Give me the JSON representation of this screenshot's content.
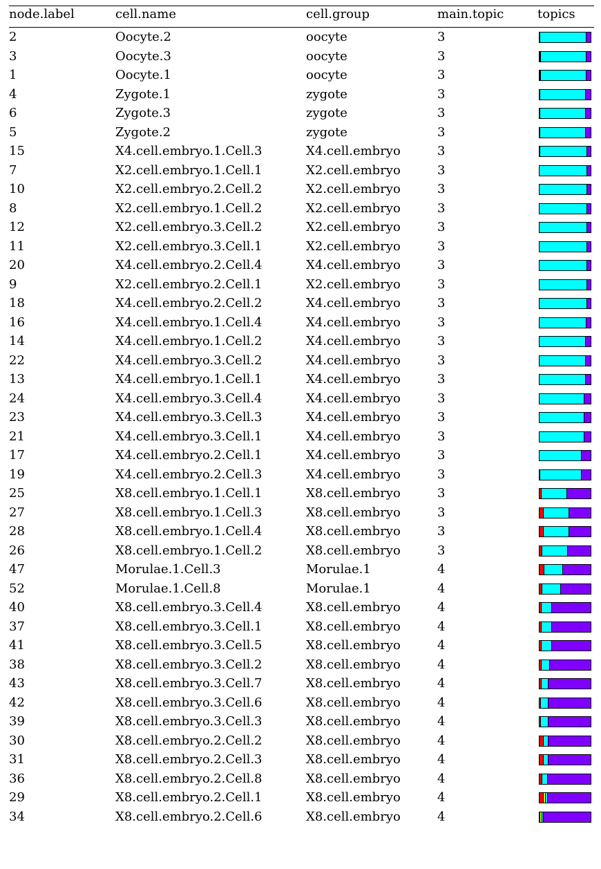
{
  "headers": [
    "node.label",
    "cell.name",
    "cell.group",
    "main.topic",
    "topics"
  ],
  "topic_colors": [
    "#ff0000",
    "#ccff00",
    "#00ffff",
    "#8000ff"
  ],
  "rows": [
    {
      "node_label": "2",
      "cell_name": "Oocyte.2",
      "cell_group": "oocyte",
      "main_topic": "3",
      "topics": [
        0.01,
        0.0,
        0.91,
        0.08
      ]
    },
    {
      "node_label": "3",
      "cell_name": "Oocyte.3",
      "cell_group": "oocyte",
      "main_topic": "3",
      "topics": [
        0.01,
        0.02,
        0.89,
        0.08
      ]
    },
    {
      "node_label": "1",
      "cell_name": "Oocyte.1",
      "cell_group": "oocyte",
      "main_topic": "3",
      "topics": [
        0.01,
        0.01,
        0.9,
        0.08
      ]
    },
    {
      "node_label": "4",
      "cell_name": "Zygote.1",
      "cell_group": "zygote",
      "main_topic": "3",
      "topics": [
        0.01,
        0.0,
        0.9,
        0.09
      ]
    },
    {
      "node_label": "6",
      "cell_name": "Zygote.3",
      "cell_group": "zygote",
      "main_topic": "3",
      "topics": [
        0.01,
        0.0,
        0.9,
        0.09
      ]
    },
    {
      "node_label": "5",
      "cell_name": "Zygote.2",
      "cell_group": "zygote",
      "main_topic": "3",
      "topics": [
        0.01,
        0.0,
        0.9,
        0.09
      ]
    },
    {
      "node_label": "15",
      "cell_name": "X4.cell.embryo.1.Cell.3",
      "cell_group": "X4.cell.embryo",
      "main_topic": "3",
      "topics": [
        0.01,
        0.0,
        0.92,
        0.07
      ]
    },
    {
      "node_label": "7",
      "cell_name": "X2.cell.embryo.1.Cell.1",
      "cell_group": "X2.cell.embryo",
      "main_topic": "3",
      "topics": [
        0.0,
        0.0,
        0.93,
        0.07
      ]
    },
    {
      "node_label": "10",
      "cell_name": "X2.cell.embryo.2.Cell.2",
      "cell_group": "X2.cell.embryo",
      "main_topic": "3",
      "topics": [
        0.0,
        0.0,
        0.93,
        0.07
      ]
    },
    {
      "node_label": "8",
      "cell_name": "X2.cell.embryo.1.Cell.2",
      "cell_group": "X2.cell.embryo",
      "main_topic": "3",
      "topics": [
        0.0,
        0.0,
        0.93,
        0.07
      ]
    },
    {
      "node_label": "12",
      "cell_name": "X2.cell.embryo.3.Cell.2",
      "cell_group": "X2.cell.embryo",
      "main_topic": "3",
      "topics": [
        0.0,
        0.0,
        0.93,
        0.07
      ]
    },
    {
      "node_label": "11",
      "cell_name": "X2.cell.embryo.3.Cell.1",
      "cell_group": "X2.cell.embryo",
      "main_topic": "3",
      "topics": [
        0.0,
        0.0,
        0.93,
        0.07
      ]
    },
    {
      "node_label": "20",
      "cell_name": "X4.cell.embryo.2.Cell.4",
      "cell_group": "X4.cell.embryo",
      "main_topic": "3",
      "topics": [
        0.0,
        0.0,
        0.93,
        0.07
      ]
    },
    {
      "node_label": "9",
      "cell_name": "X2.cell.embryo.2.Cell.1",
      "cell_group": "X2.cell.embryo",
      "main_topic": "3",
      "topics": [
        0.0,
        0.0,
        0.93,
        0.07
      ]
    },
    {
      "node_label": "18",
      "cell_name": "X4.cell.embryo.2.Cell.2",
      "cell_group": "X4.cell.embryo",
      "main_topic": "3",
      "topics": [
        0.0,
        0.0,
        0.93,
        0.07
      ]
    },
    {
      "node_label": "16",
      "cell_name": "X4.cell.embryo.1.Cell.4",
      "cell_group": "X4.cell.embryo",
      "main_topic": "3",
      "topics": [
        0.0,
        0.0,
        0.92,
        0.08
      ]
    },
    {
      "node_label": "14",
      "cell_name": "X4.cell.embryo.1.Cell.2",
      "cell_group": "X4.cell.embryo",
      "main_topic": "3",
      "topics": [
        0.0,
        0.0,
        0.9,
        0.1
      ]
    },
    {
      "node_label": "22",
      "cell_name": "X4.cell.embryo.3.Cell.2",
      "cell_group": "X4.cell.embryo",
      "main_topic": "3",
      "topics": [
        0.0,
        0.0,
        0.9,
        0.1
      ]
    },
    {
      "node_label": "13",
      "cell_name": "X4.cell.embryo.1.Cell.1",
      "cell_group": "X4.cell.embryo",
      "main_topic": "3",
      "topics": [
        0.0,
        0.0,
        0.9,
        0.1
      ]
    },
    {
      "node_label": "24",
      "cell_name": "X4.cell.embryo.3.Cell.4",
      "cell_group": "X4.cell.embryo",
      "main_topic": "3",
      "topics": [
        0.0,
        0.0,
        0.88,
        0.12
      ]
    },
    {
      "node_label": "23",
      "cell_name": "X4.cell.embryo.3.Cell.3",
      "cell_group": "X4.cell.embryo",
      "main_topic": "3",
      "topics": [
        0.0,
        0.0,
        0.88,
        0.12
      ]
    },
    {
      "node_label": "21",
      "cell_name": "X4.cell.embryo.3.Cell.1",
      "cell_group": "X4.cell.embryo",
      "main_topic": "3",
      "topics": [
        0.0,
        0.0,
        0.88,
        0.12
      ]
    },
    {
      "node_label": "17",
      "cell_name": "X4.cell.embryo.2.Cell.1",
      "cell_group": "X4.cell.embryo",
      "main_topic": "3",
      "topics": [
        0.0,
        0.0,
        0.82,
        0.18
      ]
    },
    {
      "node_label": "19",
      "cell_name": "X4.cell.embryo.2.Cell.3",
      "cell_group": "X4.cell.embryo",
      "main_topic": "3",
      "topics": [
        0.02,
        0.0,
        0.8,
        0.18
      ]
    },
    {
      "node_label": "25",
      "cell_name": "X8.cell.embryo.1.Cell.1",
      "cell_group": "X8.cell.embryo",
      "main_topic": "3",
      "topics": [
        0.04,
        0.0,
        0.5,
        0.46
      ]
    },
    {
      "node_label": "27",
      "cell_name": "X8.cell.embryo.1.Cell.3",
      "cell_group": "X8.cell.embryo",
      "main_topic": "3",
      "topics": [
        0.08,
        0.0,
        0.5,
        0.42
      ]
    },
    {
      "node_label": "28",
      "cell_name": "X8.cell.embryo.1.Cell.4",
      "cell_group": "X8.cell.embryo",
      "main_topic": "3",
      "topics": [
        0.08,
        0.0,
        0.5,
        0.42
      ]
    },
    {
      "node_label": "26",
      "cell_name": "X8.cell.embryo.1.Cell.2",
      "cell_group": "X8.cell.embryo",
      "main_topic": "3",
      "topics": [
        0.06,
        0.0,
        0.5,
        0.44
      ]
    },
    {
      "node_label": "47",
      "cell_name": "Morulae.1.Cell.3",
      "cell_group": "Morulae.1",
      "main_topic": "4",
      "topics": [
        0.1,
        0.0,
        0.36,
        0.54
      ]
    },
    {
      "node_label": "52",
      "cell_name": "Morulae.1.Cell.8",
      "cell_group": "Morulae.1",
      "main_topic": "4",
      "topics": [
        0.06,
        0.0,
        0.36,
        0.58
      ]
    },
    {
      "node_label": "40",
      "cell_name": "X8.cell.embryo.3.Cell.4",
      "cell_group": "X8.cell.embryo",
      "main_topic": "4",
      "topics": [
        0.04,
        0.0,
        0.2,
        0.76
      ]
    },
    {
      "node_label": "37",
      "cell_name": "X8.cell.embryo.3.Cell.1",
      "cell_group": "X8.cell.embryo",
      "main_topic": "4",
      "topics": [
        0.04,
        0.0,
        0.2,
        0.76
      ]
    },
    {
      "node_label": "41",
      "cell_name": "X8.cell.embryo.3.Cell.5",
      "cell_group": "X8.cell.embryo",
      "main_topic": "4",
      "topics": [
        0.04,
        0.0,
        0.2,
        0.76
      ]
    },
    {
      "node_label": "38",
      "cell_name": "X8.cell.embryo.3.Cell.2",
      "cell_group": "X8.cell.embryo",
      "main_topic": "4",
      "topics": [
        0.04,
        0.0,
        0.16,
        0.8
      ]
    },
    {
      "node_label": "43",
      "cell_name": "X8.cell.embryo.3.Cell.7",
      "cell_group": "X8.cell.embryo",
      "main_topic": "4",
      "topics": [
        0.04,
        0.0,
        0.14,
        0.82
      ]
    },
    {
      "node_label": "42",
      "cell_name": "X8.cell.embryo.3.Cell.6",
      "cell_group": "X8.cell.embryo",
      "main_topic": "4",
      "topics": [
        0.03,
        0.0,
        0.14,
        0.83
      ]
    },
    {
      "node_label": "39",
      "cell_name": "X8.cell.embryo.3.Cell.3",
      "cell_group": "X8.cell.embryo",
      "main_topic": "4",
      "topics": [
        0.03,
        0.0,
        0.14,
        0.83
      ]
    },
    {
      "node_label": "30",
      "cell_name": "X8.cell.embryo.2.Cell.2",
      "cell_group": "X8.cell.embryo",
      "main_topic": "4",
      "topics": [
        0.08,
        0.0,
        0.1,
        0.82
      ]
    },
    {
      "node_label": "31",
      "cell_name": "X8.cell.embryo.2.Cell.3",
      "cell_group": "X8.cell.embryo",
      "main_topic": "4",
      "topics": [
        0.08,
        0.0,
        0.1,
        0.82
      ]
    },
    {
      "node_label": "36",
      "cell_name": "X8.cell.embryo.2.Cell.8",
      "cell_group": "X8.cell.embryo",
      "main_topic": "4",
      "topics": [
        0.06,
        0.0,
        0.1,
        0.84
      ]
    },
    {
      "node_label": "29",
      "cell_name": "X8.cell.embryo.2.Cell.1",
      "cell_group": "X8.cell.embryo",
      "main_topic": "4",
      "topics": [
        0.08,
        0.04,
        0.04,
        0.84
      ]
    },
    {
      "node_label": "34",
      "cell_name": "X8.cell.embryo.2.Cell.6",
      "cell_group": "X8.cell.embryo",
      "main_topic": "4",
      "topics": [
        0.02,
        0.04,
        0.02,
        0.92
      ]
    }
  ]
}
